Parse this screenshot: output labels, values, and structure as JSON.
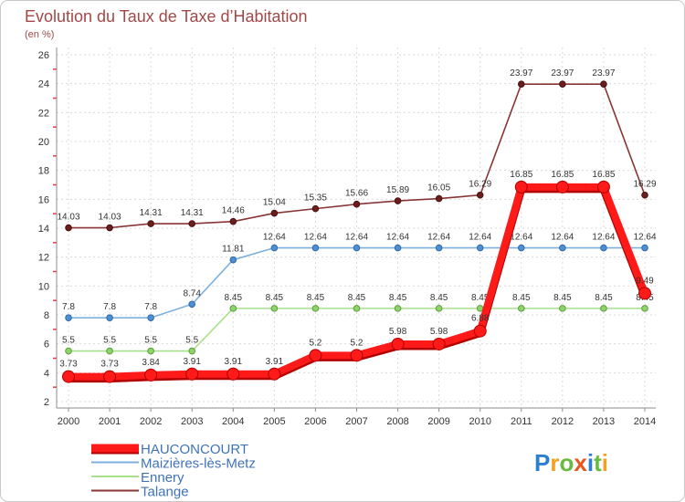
{
  "chart_data": {
    "type": "line",
    "title": "Evolution du Taux de Taxe d’Habitation",
    "subtitle": "(en %)",
    "x": [
      2000,
      2001,
      2002,
      2003,
      2004,
      2005,
      2006,
      2007,
      2008,
      2009,
      2010,
      2011,
      2012,
      2013,
      2014
    ],
    "ylim": [
      2,
      26
    ],
    "yticks": [
      2,
      4,
      6,
      8,
      10,
      12,
      14,
      16,
      18,
      20,
      22,
      24,
      26
    ],
    "grid": true,
    "legend_position": "bottom-left",
    "series": [
      {
        "name": "HAUCONCOURT",
        "highlighted": true,
        "color": "#ff1a1a",
        "shadow_color": "#b00000",
        "marker_color": "#ff1a1a",
        "marker_stroke": "#b00000",
        "values": [
          3.73,
          3.73,
          3.84,
          3.91,
          3.91,
          3.91,
          5.2,
          5.2,
          5.98,
          5.98,
          6.88,
          16.85,
          16.85,
          16.85,
          9.49
        ]
      },
      {
        "name": "Maizières-lès-Metz",
        "color": "#7eb0de",
        "marker_color": "#4d8fd1",
        "marker_stroke": "#2f6aa8",
        "values": [
          7.8,
          7.8,
          7.8,
          8.74,
          11.81,
          12.64,
          12.64,
          12.64,
          12.64,
          12.64,
          12.64,
          12.64,
          12.64,
          12.64,
          12.64
        ]
      },
      {
        "name": "Ennery",
        "color": "#a8e08c",
        "marker_color": "#8fd46a",
        "marker_stroke": "#5a9c3a",
        "values": [
          5.5,
          5.5,
          5.5,
          5.5,
          8.45,
          8.45,
          8.45,
          8.45,
          8.45,
          8.45,
          8.45,
          8.45,
          8.45,
          8.45,
          8.45
        ]
      },
      {
        "name": "Talange",
        "color": "#8a3535",
        "marker_color": "#6a1e1e",
        "marker_stroke": "#4a1010",
        "values": [
          14.03,
          14.03,
          14.31,
          14.31,
          14.46,
          15.04,
          15.35,
          15.66,
          15.89,
          16.05,
          16.29,
          23.97,
          23.97,
          23.97,
          16.29
        ]
      }
    ]
  },
  "logo": {
    "text": "Proxiti",
    "letter_colors": [
      "#2b7fd2",
      "#f3a024",
      "#67bb3f",
      "#e8561c",
      "#2b7fd2",
      "#67bb3f",
      "#f3a024"
    ]
  },
  "colors": {
    "title": "#a24848",
    "legend_text": "#3f73b8"
  }
}
